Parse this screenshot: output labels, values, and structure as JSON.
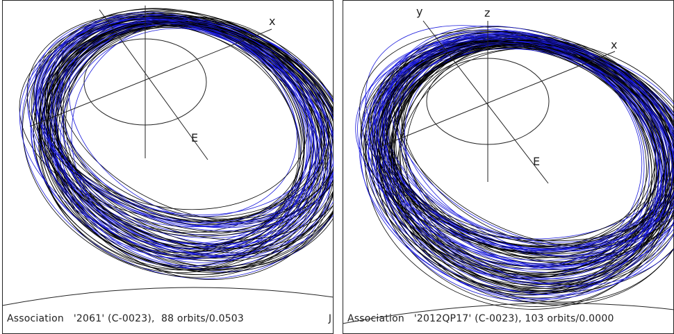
{
  "panels": [
    {
      "caption": "Association   '2061' (C-0023),  88 orbits/0.0503",
      "corner_label": "J",
      "axes": {
        "x": "x",
        "e": "E"
      },
      "orbit_colors": {
        "primary": "#000000",
        "secondary": "#1a1adc"
      },
      "orbit_count": 88
    },
    {
      "caption": "Association   '2012QP17' (C-0023), 103 orbits/0.0000",
      "axes": {
        "x": "x",
        "y": "y",
        "z": "z",
        "e": "E"
      },
      "orbit_colors": {
        "primary": "#000000",
        "secondary": "#1a1adc"
      },
      "orbit_count": 103
    }
  ]
}
